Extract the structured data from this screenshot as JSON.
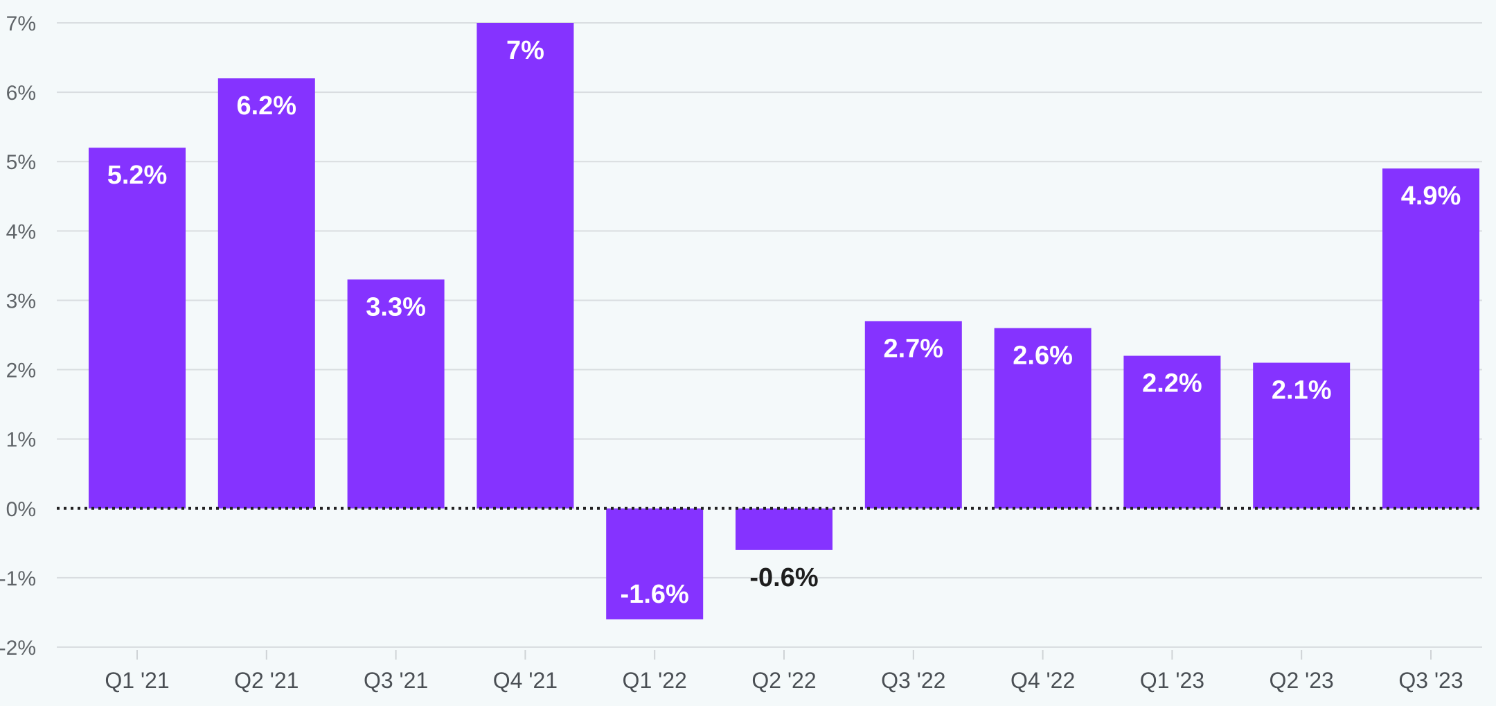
{
  "chart_data": {
    "type": "bar",
    "categories": [
      "Q1 '21",
      "Q2 '21",
      "Q3 '21",
      "Q4 '21",
      "Q1 '22",
      "Q2 '22",
      "Q3 '22",
      "Q4 '22",
      "Q1 '23",
      "Q2 '23",
      "Q3 '23"
    ],
    "values": [
      5.2,
      6.2,
      3.3,
      7,
      -1.6,
      -0.6,
      2.7,
      2.6,
      2.2,
      2.1,
      4.9
    ],
    "data_labels": [
      "5.2%",
      "6.2%",
      "3.3%",
      "7%",
      "-1.6%",
      "-0.6%",
      "2.7%",
      "2.6%",
      "2.2%",
      "2.1%",
      "4.9%"
    ],
    "yticks": [
      7,
      6,
      5,
      4,
      3,
      2,
      1,
      0,
      -1,
      -2
    ],
    "ytick_labels": [
      "7%",
      "6%",
      "5%",
      "4%",
      "3%",
      "2%",
      "1%",
      "0%",
      "-1%",
      "-2%"
    ],
    "ylim": [
      -2,
      7
    ],
    "grid": "horizontal",
    "zero_line": "dotted",
    "title": "",
    "xlabel": "",
    "ylabel": "",
    "colors": {
      "bar": "#8533ff",
      "label_inside": "#ffffff",
      "label_outside": "#1e1e1e",
      "grid": "#d9dde0",
      "background": "#f4f9fa"
    }
  }
}
